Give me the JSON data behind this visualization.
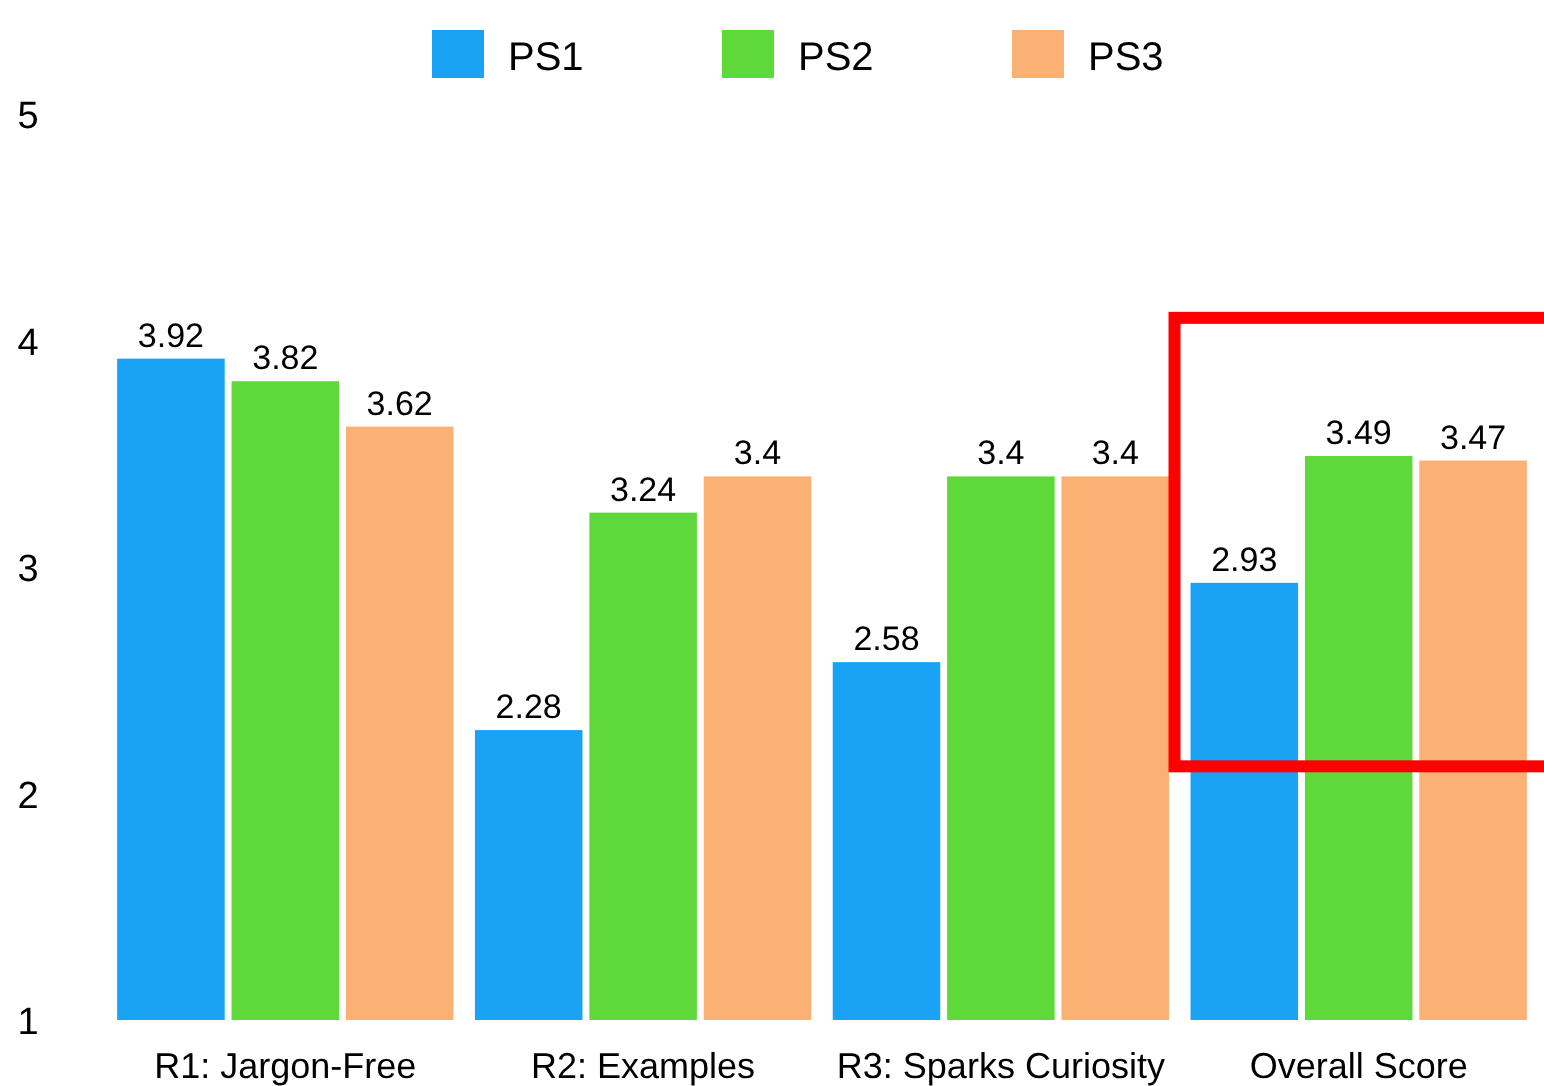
{
  "chart_data": {
    "type": "bar",
    "categories": [
      "R1: Jargon-Free",
      "R2: Examples",
      "R3: Sparks Curiosity",
      "Overall Score"
    ],
    "series": [
      {
        "name": "PS1",
        "color": "#1aa3f5",
        "values": [
          3.92,
          2.28,
          2.58,
          2.93
        ]
      },
      {
        "name": "PS2",
        "color": "#5fd93a",
        "values": [
          3.82,
          3.24,
          3.4,
          3.49
        ]
      },
      {
        "name": "PS3",
        "color": "#fbb074",
        "values": [
          3.62,
          3.4,
          3.4,
          3.47
        ]
      }
    ],
    "ylim": [
      1,
      5
    ],
    "yticks": [
      1,
      2,
      3,
      4,
      5
    ],
    "grid": false,
    "legend": "top",
    "data_labels": true
  }
}
